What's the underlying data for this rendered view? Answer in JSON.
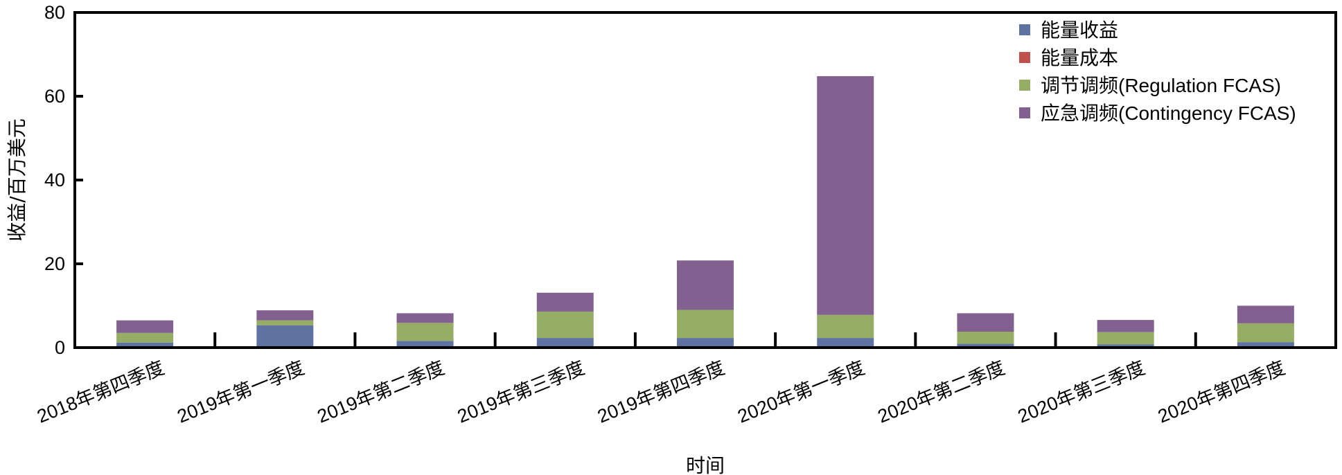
{
  "chart_data": {
    "type": "bar",
    "stacked": true,
    "xlabel": "时间",
    "ylabel": "收益/百万美元",
    "ylim": [
      0,
      80
    ],
    "yticks": [
      0,
      20,
      40,
      60,
      80
    ],
    "categories": [
      "2018年第四季度",
      "2019年第一季度",
      "2019年第二季度",
      "2019年第三季度",
      "2019年第四季度",
      "2020年第一季度",
      "2020年第二季度",
      "2020年第三季度",
      "2020年第四季度"
    ],
    "series": [
      {
        "name": "能量收益",
        "color": "#5f73a3",
        "values": [
          1.2,
          5.3,
          1.6,
          2.3,
          2.3,
          2.3,
          0.9,
          0.8,
          1.3
        ]
      },
      {
        "name": "能量成本",
        "color": "#c0504d",
        "values": [
          0,
          0,
          0,
          0,
          0,
          0,
          0,
          0,
          0
        ]
      },
      {
        "name": "调节调频(Regulation FCAS)",
        "color": "#95ad64",
        "values": [
          2.3,
          1.2,
          4.3,
          6.3,
          6.7,
          5.5,
          2.9,
          2.9,
          4.5
        ]
      },
      {
        "name": "应急调频(Contingency FCAS)",
        "color": "#826190",
        "values": [
          3.0,
          2.4,
          2.3,
          4.5,
          11.8,
          57.0,
          4.4,
          2.9,
          4.2
        ]
      }
    ],
    "legend_position": "top-right",
    "grid": false
  }
}
